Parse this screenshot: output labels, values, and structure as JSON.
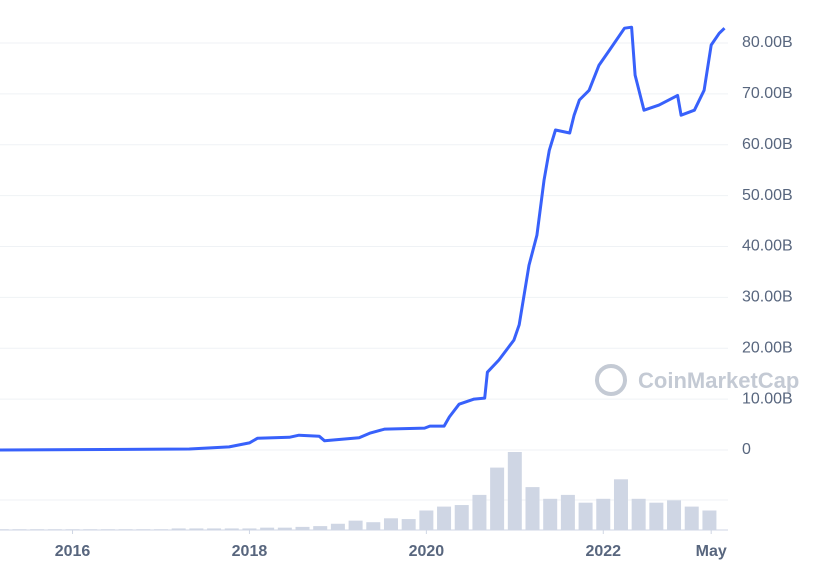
{
  "chart_data": {
    "type": "line",
    "watermark": "CoinMarketCap",
    "color": "#3861fb",
    "xlim": [
      2015.18,
      2023.41
    ],
    "xticks": [
      2016,
      2018,
      2020,
      2022,
      {
        "value": 2023.22,
        "label": "May"
      }
    ],
    "ylim": [
      0,
      80
    ],
    "yticks": [
      0,
      {
        "value": 10,
        "label": "10.00B"
      },
      {
        "value": 20,
        "label": "20.00B"
      },
      {
        "value": 30,
        "label": "30.00B"
      },
      {
        "value": 40,
        "label": "40.00B"
      },
      {
        "value": 50,
        "label": "50.00B"
      },
      {
        "value": 60,
        "label": "60.00B"
      },
      {
        "value": 70,
        "label": "70.00B"
      },
      {
        "value": 80,
        "label": "80.00B"
      }
    ],
    "grid": true,
    "x": [
      2015.18,
      2017.32,
      2017.77,
      2018.0,
      2018.09,
      2018.45,
      2018.56,
      2018.79,
      2018.85,
      2019.24,
      2019.36,
      2019.53,
      2019.98,
      2020.04,
      2020.2,
      2020.26,
      2020.37,
      2020.54,
      2020.66,
      2020.69,
      2020.82,
      2020.99,
      2021.05,
      2021.16,
      2021.25,
      2021.33,
      2021.39,
      2021.46,
      2021.62,
      2021.67,
      2021.73,
      2021.84,
      2021.95,
      2022.07,
      2022.24,
      2022.32,
      2022.36,
      2022.46,
      2022.63,
      2022.84,
      2022.88,
      2023.03,
      2023.14,
      2023.22,
      2023.31,
      2023.37
    ],
    "values": [
      0,
      0.2,
      0.6,
      1.4,
      2.3,
      2.5,
      2.9,
      2.7,
      1.8,
      2.4,
      3.3,
      4.1,
      4.3,
      4.7,
      4.7,
      6.5,
      9.0,
      10.0,
      10.2,
      15.3,
      17.7,
      21.6,
      24.6,
      36.3,
      42.2,
      53.0,
      58.9,
      62.9,
      62.3,
      65.8,
      68.8,
      70.7,
      75.6,
      78.6,
      82.9,
      83.1,
      73.7,
      66.8,
      67.8,
      69.7,
      65.8,
      66.8,
      70.7,
      79.6,
      81.9,
      82.9
    ],
    "volume": {
      "color": "#cfd6e4",
      "ylim": [
        0,
        100
      ],
      "x": [
        2015.2,
        2015.4,
        2015.6,
        2015.8,
        2016.0,
        2016.2,
        2016.4,
        2016.6,
        2016.8,
        2017.0,
        2017.2,
        2017.4,
        2017.6,
        2017.8,
        2018.0,
        2018.2,
        2018.4,
        2018.6,
        2018.8,
        2019.0,
        2019.2,
        2019.4,
        2019.6,
        2019.8,
        2020.0,
        2020.2,
        2020.4,
        2020.6,
        2020.8,
        2021.0,
        2021.2,
        2021.4,
        2021.6,
        2021.8,
        2022.0,
        2022.2,
        2022.4,
        2022.6,
        2022.8,
        2023.0,
        2023.2
      ],
      "values": [
        1,
        1,
        1,
        1,
        1,
        1,
        1,
        1,
        1,
        1,
        2,
        2,
        2,
        2,
        2,
        3,
        3,
        4,
        5,
        8,
        12,
        10,
        15,
        14,
        25,
        30,
        32,
        45,
        80,
        100,
        55,
        40,
        45,
        35,
        40,
        65,
        40,
        35,
        38,
        30,
        25
      ]
    }
  }
}
